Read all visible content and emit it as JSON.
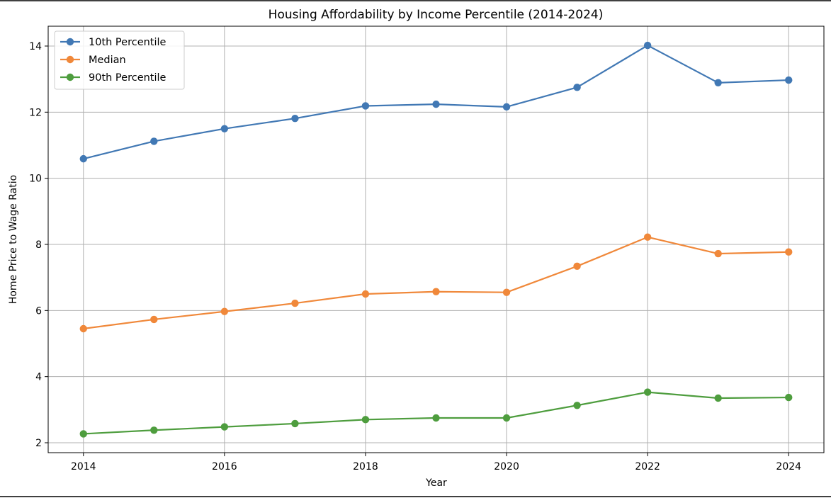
{
  "chart_data": {
    "type": "line",
    "title": "Housing Affordability by Income Percentile (2014-2024)",
    "xlabel": "Year",
    "ylabel": "Home Price to Wage Ratio",
    "x": [
      2014,
      2015,
      2016,
      2017,
      2018,
      2019,
      2020,
      2021,
      2022,
      2023,
      2024
    ],
    "xlim": [
      2013.5,
      2024.5
    ],
    "ylim": [
      1.7,
      14.6
    ],
    "xticks": [
      2014,
      2016,
      2018,
      2020,
      2022,
      2024
    ],
    "yticks": [
      2,
      4,
      6,
      8,
      10,
      12,
      14
    ],
    "grid": true,
    "legend_position": "top-left",
    "series": [
      {
        "name": "10th Percentile",
        "color": "#4178b4",
        "values": [
          10.59,
          11.12,
          11.5,
          11.81,
          12.19,
          12.24,
          12.16,
          12.75,
          14.02,
          12.89,
          12.97
        ]
      },
      {
        "name": "Median",
        "color": "#f0883a",
        "values": [
          5.45,
          5.73,
          5.97,
          6.22,
          6.5,
          6.57,
          6.55,
          7.34,
          8.22,
          7.72,
          7.77
        ]
      },
      {
        "name": "90th Percentile",
        "color": "#4e9d3e",
        "values": [
          2.27,
          2.38,
          2.48,
          2.58,
          2.7,
          2.75,
          2.75,
          3.13,
          3.53,
          3.35,
          3.37
        ]
      }
    ]
  }
}
